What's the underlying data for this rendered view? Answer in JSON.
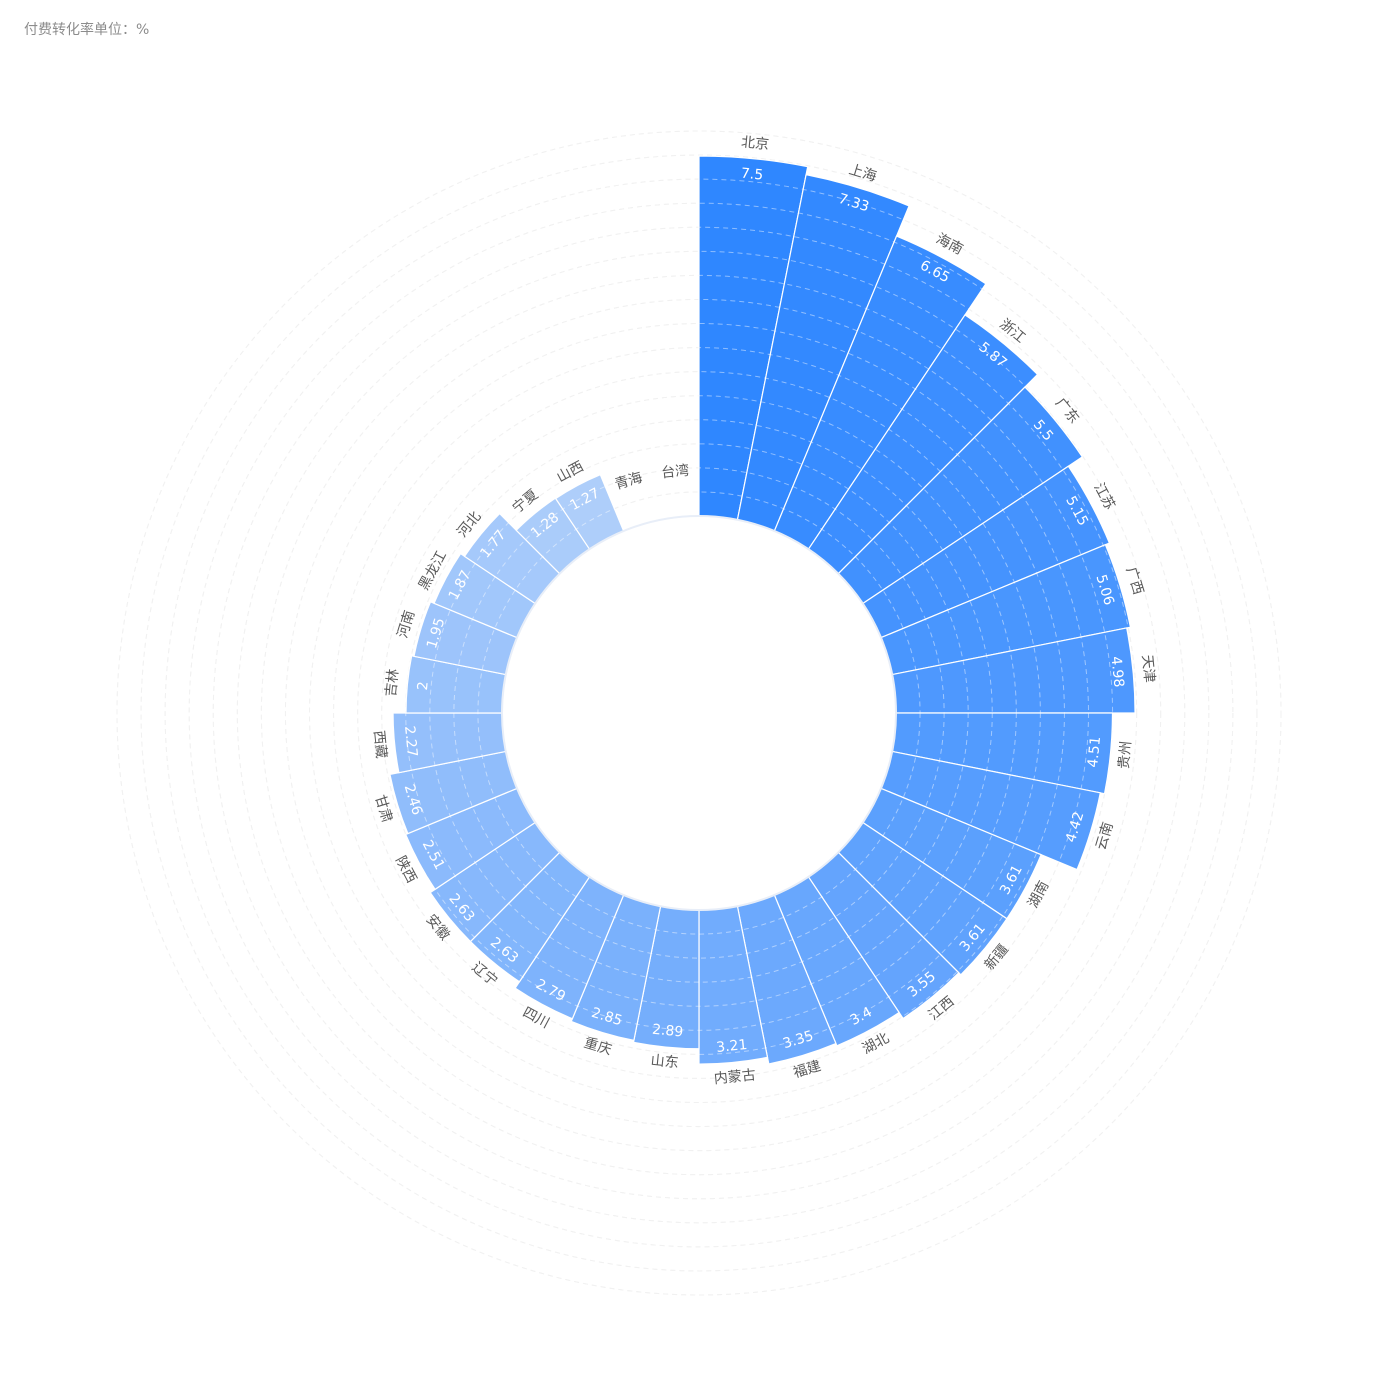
{
  "header": {
    "unit_title": "付费转化率单位：%"
  },
  "colors": {
    "dark": "#2f87ff",
    "light": "#b7d3fa",
    "ring": "#e6e6e6",
    "label": "#595959"
  },
  "chart_data": {
    "type": "bar",
    "polar": true,
    "categories": [
      "北京",
      "上海",
      "海南",
      "浙江",
      "广东",
      "江苏",
      "广西",
      "天津",
      "贵州",
      "云南",
      "湖南",
      "新疆",
      "江西",
      "湖北",
      "福建",
      "内蒙古",
      "山东",
      "重庆",
      "四川",
      "辽宁",
      "安徽",
      "陕西",
      "甘肃",
      "西藏",
      "吉林",
      "河南",
      "黑龙江",
      "河北",
      "宁夏",
      "山西",
      "青海",
      "台湾"
    ],
    "values": [
      7.5,
      7.33,
      6.65,
      5.87,
      5.5,
      5.15,
      5.06,
      4.98,
      4.51,
      4.42,
      3.61,
      3.61,
      3.55,
      3.4,
      3.35,
      3.21,
      2.89,
      2.85,
      2.79,
      2.63,
      2.63,
      2.51,
      2.46,
      2.27,
      2,
      1.95,
      1.87,
      1.77,
      1.28,
      1.27,
      0,
      0
    ],
    "value_labels": [
      "7.5",
      "7.33",
      "6.65",
      "5.87",
      "5.5",
      "5.15",
      "5.06",
      "4.98",
      "4.51",
      "4.42",
      "3.61",
      "3.61",
      "3.55",
      "3.4",
      "3.35",
      "3.21",
      "2.89",
      "2.85",
      "2.79",
      "2.63",
      "2.63",
      "2.51",
      "2.46",
      "2.27",
      "2",
      "1.95",
      "1.87",
      "1.77",
      "1.28",
      "1.27",
      "0",
      "0"
    ],
    "ylim": [
      0,
      7.5
    ],
    "grid": true
  }
}
